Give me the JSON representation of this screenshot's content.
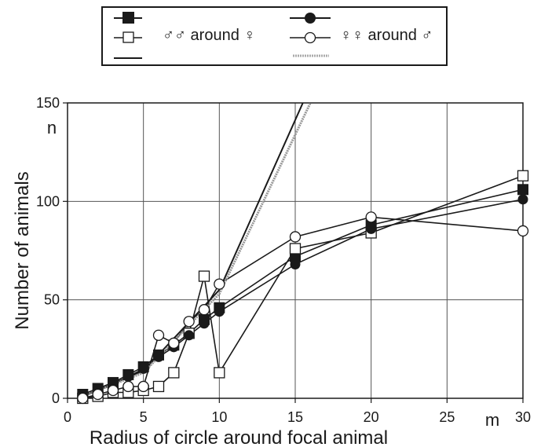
{
  "chart_data": {
    "type": "line",
    "title": "",
    "xlabel": "Radius of circle around focal animal",
    "ylabel": "Number of animals",
    "x_unit": "m",
    "y_unit": "n",
    "xlim": [
      0,
      30
    ],
    "ylim": [
      0,
      150
    ],
    "x_ticks": [
      0,
      5,
      10,
      15,
      20,
      25,
      30
    ],
    "y_ticks": [
      0,
      50,
      100,
      150
    ],
    "grid": true,
    "legend_position": "top",
    "legend": {
      "group1_label": "♂♂ around ♀",
      "group2_label": "♀♀ around ♂"
    },
    "series": [
      {
        "group": "group1",
        "marker": "filled-square",
        "color": "#1a1a1a",
        "x": [
          1,
          2,
          3,
          4,
          5,
          6,
          7,
          8,
          9,
          10,
          15,
          20,
          30
        ],
        "y": [
          2,
          5,
          8,
          12,
          16,
          22,
          27,
          33,
          40,
          46,
          72,
          88,
          106
        ]
      },
      {
        "group": "group1",
        "marker": "open-square",
        "color": "#1a1a1a",
        "x": [
          1,
          2,
          3,
          4,
          5,
          6,
          7,
          8,
          9,
          10,
          15,
          20,
          30
        ],
        "y": [
          0,
          1,
          3,
          3,
          4,
          6,
          13,
          33,
          62,
          13,
          76,
          84,
          113
        ]
      },
      {
        "group": "group2",
        "marker": "filled-circle",
        "color": "#1a1a1a",
        "x": [
          1,
          2,
          3,
          4,
          5,
          6,
          7,
          8,
          9,
          10,
          15,
          20,
          30
        ],
        "y": [
          1,
          4,
          7,
          11,
          15,
          21,
          26,
          32,
          38,
          44,
          68,
          86,
          101
        ]
      },
      {
        "group": "group2",
        "marker": "open-circle",
        "color": "#1a1a1a",
        "x": [
          1,
          2,
          3,
          4,
          5,
          6,
          7,
          8,
          9,
          10,
          15,
          20,
          30
        ],
        "y": [
          0,
          2,
          4,
          6,
          6,
          32,
          28,
          39,
          45,
          58,
          82,
          92,
          85
        ]
      },
      {
        "group": "group1",
        "marker": "none",
        "style": "solid",
        "color": "#1a1a1a",
        "x": [
          1,
          5,
          10,
          15.5
        ],
        "y": [
          1,
          14,
          55,
          150
        ]
      },
      {
        "group": "group2",
        "marker": "none",
        "style": "dotted-gray",
        "color": "#999999",
        "x": [
          1,
          5,
          10,
          16
        ],
        "y": [
          1,
          13,
          53,
          150
        ]
      }
    ]
  }
}
